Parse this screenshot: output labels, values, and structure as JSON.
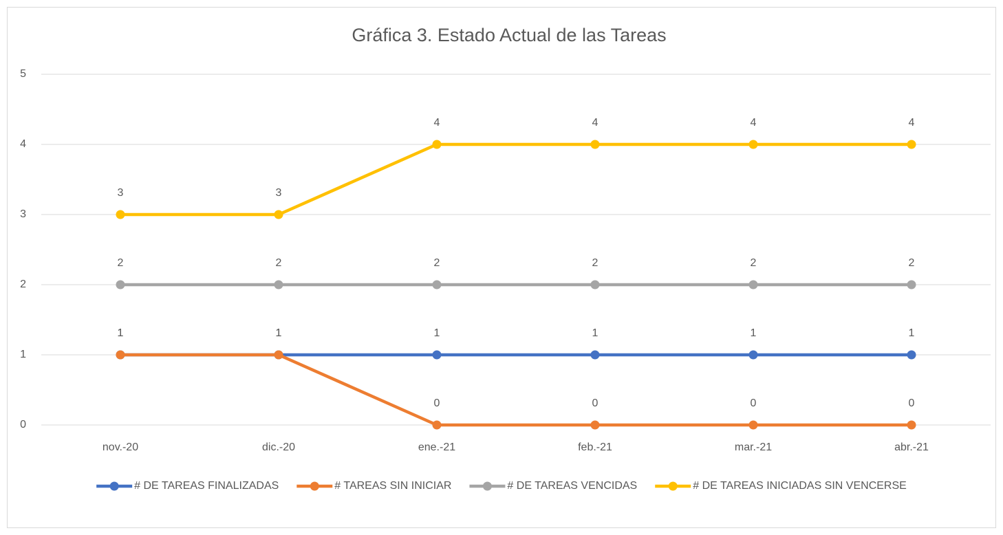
{
  "chart_data": {
    "type": "line",
    "title": "Gráfica 3. Estado Actual de las Tareas",
    "categories": [
      "nov.-20",
      "dic.-20",
      "ene.-21",
      "feb.-21",
      "mar.-21",
      "abr.-21"
    ],
    "series": [
      {
        "name": "# DE TAREAS FINALIZADAS",
        "color": "#4472c4",
        "values": [
          1,
          1,
          1,
          1,
          1,
          1
        ]
      },
      {
        "name": "# TAREAS SIN INICIAR",
        "color": "#ed7d31",
        "values": [
          1,
          1,
          0,
          0,
          0,
          0
        ]
      },
      {
        "name": "# DE TAREAS VENCIDAS",
        "color": "#a5a5a5",
        "values": [
          2,
          2,
          2,
          2,
          2,
          2
        ]
      },
      {
        "name": "# DE TAREAS INICIADAS SIN VENCERSE",
        "color": "#ffc000",
        "values": [
          3,
          3,
          4,
          4,
          4,
          4
        ]
      }
    ],
    "ylim": [
      0,
      5
    ],
    "yticks": [
      0,
      1,
      2,
      3,
      4,
      5
    ],
    "grid": true,
    "legend": "bottom"
  }
}
